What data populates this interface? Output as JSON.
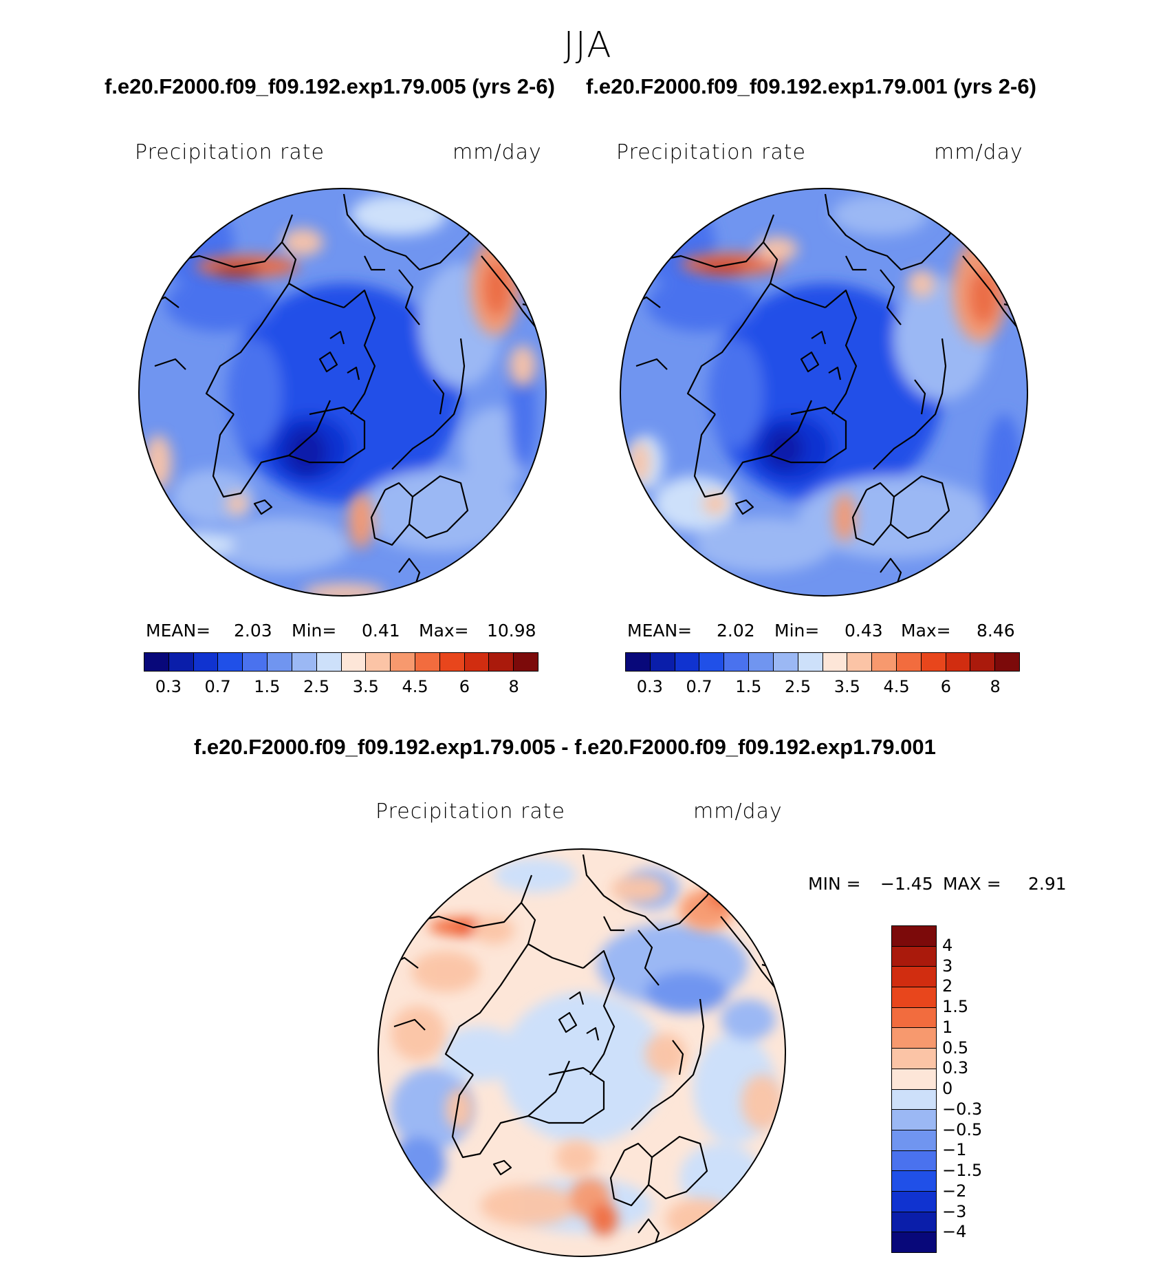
{
  "figure": {
    "season": "JJA",
    "case1_title": "f.e20.F2000.f09_f09.192.exp1.79.005 (yrs 2-6)",
    "case2_title": "f.e20.F2000.f09_f09.192.exp1.79.001 (yrs 2-6)",
    "diff_title": "f.e20.F2000.f09_f09.192.exp1.79.005 - f.e20.F2000.f09_f09.192.exp1.79.001"
  },
  "panels": {
    "left": {
      "variable": "Precipitation  rate",
      "units": "mm/day",
      "mean_label": "MEAN=",
      "mean_value": "2.03",
      "min_label": "Min=",
      "min_value": "0.41",
      "max_label": "Max=",
      "max_value": "10.98"
    },
    "right": {
      "variable": "Precipitation  rate",
      "units": "mm/day",
      "mean_label": "MEAN=",
      "mean_value": "2.02",
      "min_label": "Min=",
      "min_value": "0.43",
      "max_label": "Max=",
      "max_value": "8.46"
    },
    "diff": {
      "variable": "Precipitation  rate",
      "units": "mm/day",
      "min_label": "MIN =",
      "min_value": "−1.45",
      "max_label": "MAX =",
      "max_value": "2.91"
    }
  },
  "colorbars": {
    "abs_colors": [
      "#08087a",
      "#0a1eaa",
      "#1033d0",
      "#2050e8",
      "#4a72ee",
      "#7095f0",
      "#9bb8f4",
      "#cde0fa",
      "#fde6d8",
      "#fbc4a6",
      "#f7996e",
      "#f26c3e",
      "#e8461c",
      "#d12d10",
      "#aa1a0c",
      "#7c0a0a"
    ],
    "abs_labels": [
      "0.3",
      "0.7",
      "1.5",
      "2.5",
      "3.5",
      "4.5",
      "6",
      "8"
    ],
    "diff_colors": [
      "#7c0a0a",
      "#aa1a0c",
      "#d12d10",
      "#e8461c",
      "#f26c3e",
      "#f7996e",
      "#fbc4a6",
      "#fde6d8",
      "#cde0fa",
      "#9bb8f4",
      "#7095f0",
      "#4a72ee",
      "#2050e8",
      "#1033d0",
      "#0a1eaa",
      "#08087a"
    ],
    "diff_labels": [
      "4",
      "3",
      "2",
      "1.5",
      "1",
      "0.5",
      "0.3",
      "0",
      "−0.3",
      "−0.5",
      "−1",
      "−1.5",
      "−2",
      "−3",
      "−4"
    ]
  }
}
